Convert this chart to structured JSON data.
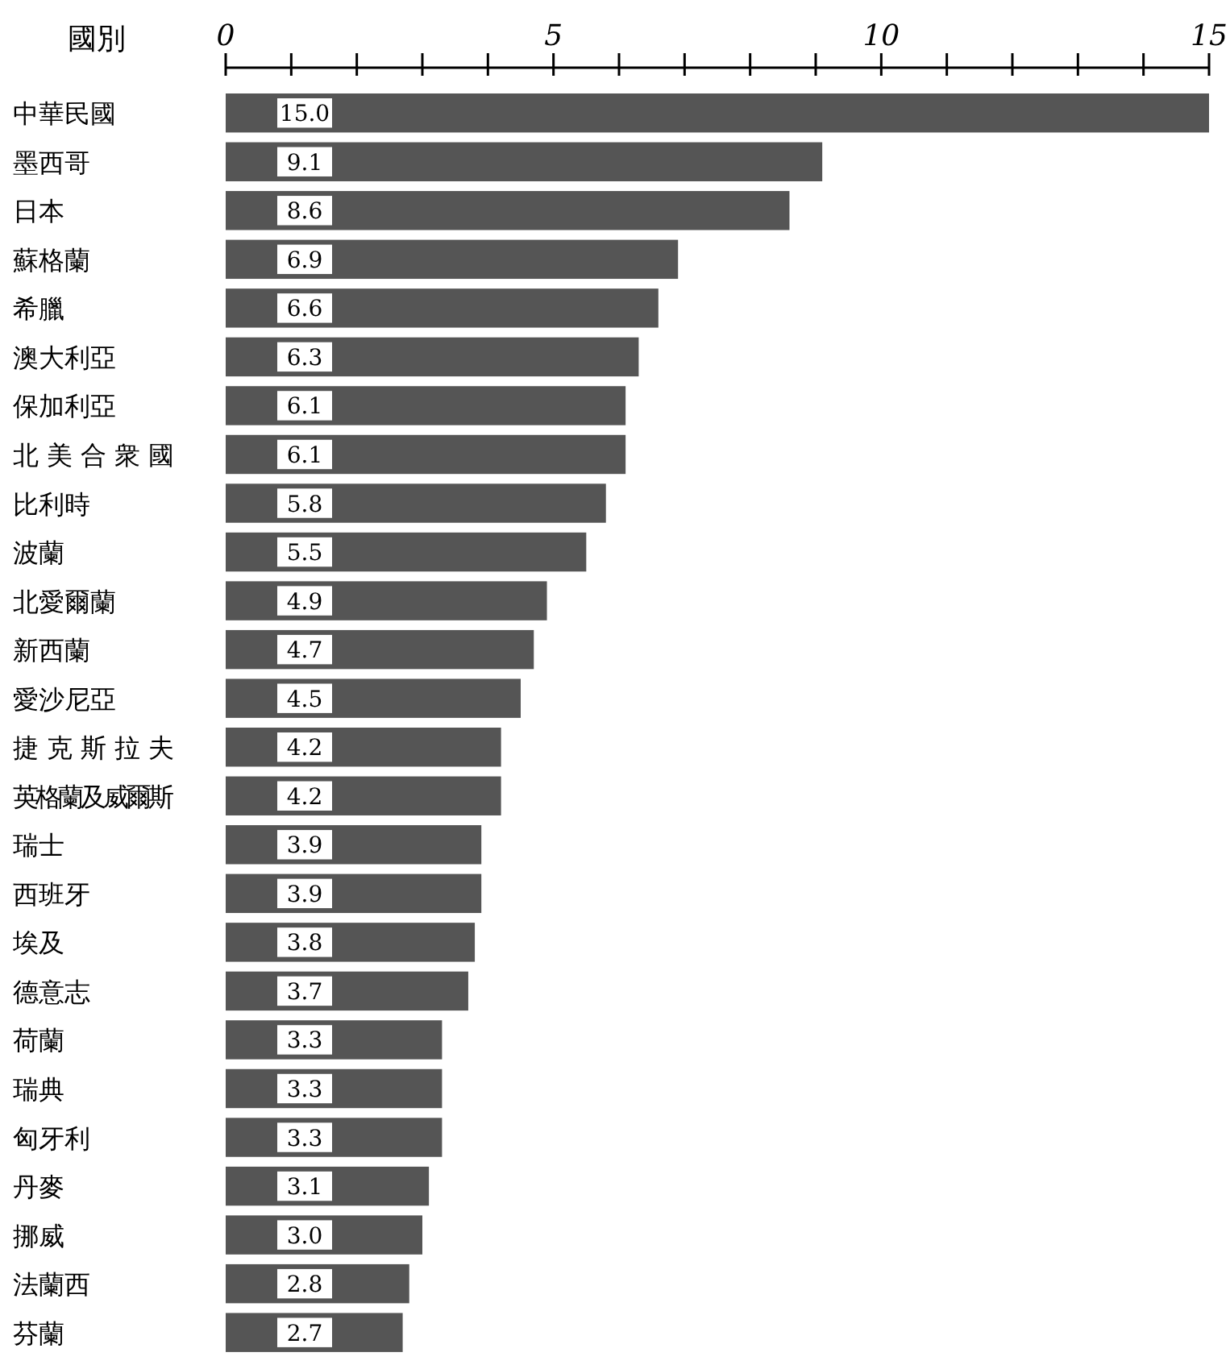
{
  "chart_data": {
    "type": "bar",
    "orientation": "horizontal",
    "ylabel": "國別",
    "categories": [
      "中華民國",
      "墨西哥",
      "日本",
      "蘇格蘭",
      "希臘",
      "澳大利亞",
      "保加利亞",
      "北美合衆國",
      "比利時",
      "波蘭",
      "北愛爾蘭",
      "新西蘭",
      "愛沙尼亞",
      "捷克斯拉夫",
      "英格蘭及威爾斯",
      "瑞士",
      "西班牙",
      "埃及",
      "德意志",
      "荷蘭",
      "瑞典",
      "匈牙利",
      "丹麥",
      "挪威",
      "法蘭西",
      "芬蘭"
    ],
    "values": [
      15.0,
      9.1,
      8.6,
      6.9,
      6.6,
      6.3,
      6.1,
      6.1,
      5.8,
      5.5,
      4.9,
      4.7,
      4.5,
      4.2,
      4.2,
      3.9,
      3.9,
      3.8,
      3.7,
      3.3,
      3.3,
      3.3,
      3.1,
      3.0,
      2.8,
      2.7
    ],
    "value_labels": [
      "15.0",
      "9.1",
      "8.6",
      "6.9",
      "6.6",
      "6.3",
      "6.1",
      "6.1",
      "5.8",
      "5.5",
      "4.9",
      "4.7",
      "4.5",
      "4.2",
      "4.2",
      "3.9",
      "3.9",
      "3.8",
      "3.7",
      "3.3",
      "3.3",
      "3.3",
      "3.1",
      "3.0",
      "2.8",
      "2.7"
    ],
    "color": "#555555",
    "xlim": [
      0,
      15
    ],
    "xticks": [
      0,
      {
        "value": 1,
        "label": null
      },
      {
        "value": 2,
        "label": null
      },
      {
        "value": 3,
        "label": null
      },
      {
        "value": 4,
        "label": null
      },
      5,
      {
        "value": 6,
        "label": null
      },
      {
        "value": 7,
        "label": null
      },
      {
        "value": 8,
        "label": null
      },
      {
        "value": 9,
        "label": null
      },
      10,
      {
        "value": 11,
        "label": null
      },
      {
        "value": 12,
        "label": null
      },
      {
        "value": 13,
        "label": null
      },
      {
        "value": 14,
        "label": null
      },
      15
    ]
  }
}
